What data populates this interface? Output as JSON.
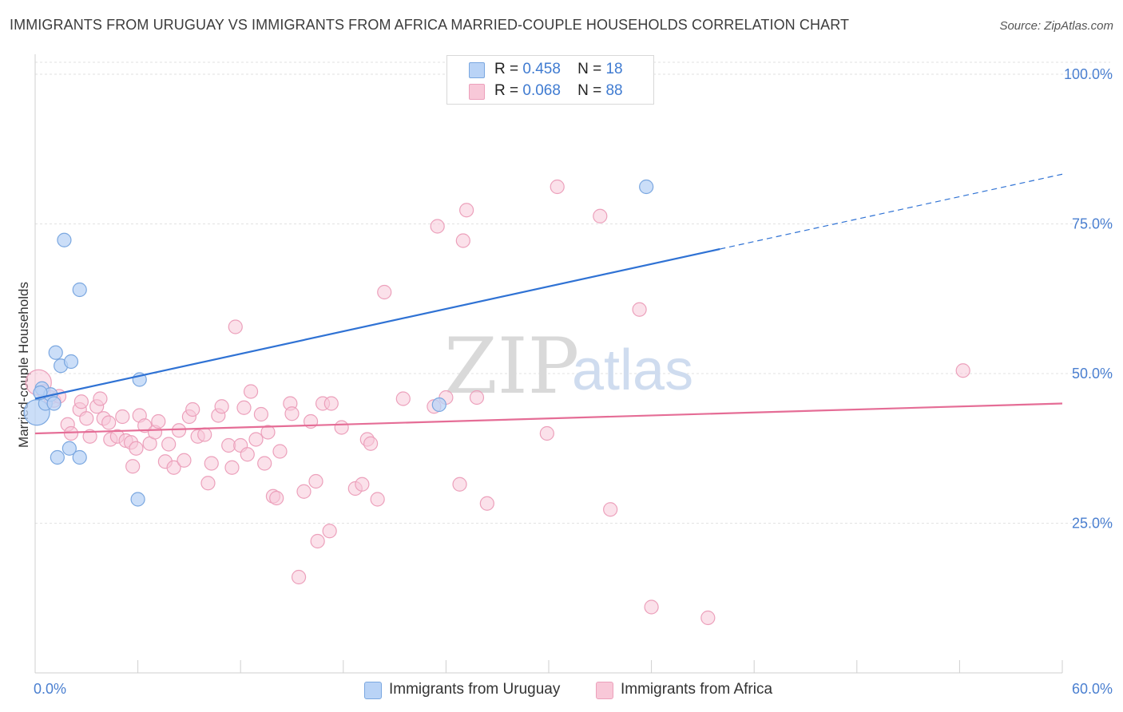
{
  "title": "IMMIGRANTS FROM URUGUAY VS IMMIGRANTS FROM AFRICA MARRIED-COUPLE HOUSEHOLDS CORRELATION CHART",
  "source": "Source: ZipAtlas.com",
  "watermark": {
    "zip": "ZIP",
    "atlas": "atlas"
  },
  "colors": {
    "uruguay_fill": "#b9d3f6",
    "uruguay_stroke": "#7aa7e0",
    "uruguay_line": "#2f72d4",
    "africa_fill": "#f8c8d8",
    "africa_stroke": "#eca0bb",
    "africa_line": "#e56d96",
    "tick_text": "#4a7fd0",
    "grid": "#e2e2e2"
  },
  "stats_legend": [
    {
      "r_label": "R =",
      "r_value": "0.458",
      "n_label": "N =",
      "n_value": "18",
      "series": "uruguay"
    },
    {
      "r_label": "R =",
      "r_value": "0.068",
      "n_label": "N =",
      "n_value": "88",
      "series": "africa"
    }
  ],
  "chart_data": {
    "type": "scatter",
    "title": "IMMIGRANTS FROM URUGUAY VS IMMIGRANTS FROM AFRICA MARRIED-COUPLE HOUSEHOLDS CORRELATION CHART",
    "xlabel": "",
    "ylabel": "Married-couple Households",
    "xlim": [
      0,
      60
    ],
    "ylim": [
      0,
      102
    ],
    "x_tick_labels": [
      {
        "value": 0,
        "label": "0.0%"
      },
      {
        "value": 60,
        "label": "60.0%"
      }
    ],
    "x_minor_ticks": [
      6,
      12,
      18,
      24,
      30,
      36,
      42,
      48,
      54
    ],
    "y_ticks": [
      {
        "value": 25,
        "label": "25.0%"
      },
      {
        "value": 50,
        "label": "50.0%"
      },
      {
        "value": 75,
        "label": "75.0%"
      },
      {
        "value": 100,
        "label": "100.0%"
      }
    ],
    "grid": true,
    "legend_position": "bottom-center",
    "series": [
      {
        "name": "Immigrants from Uruguay",
        "key": "uruguay",
        "R": 0.458,
        "N": 18,
        "points": [
          [
            0.1,
            43.5
          ],
          [
            0.4,
            47.5
          ],
          [
            0.6,
            45.0
          ],
          [
            0.9,
            46.5
          ],
          [
            1.1,
            45.0
          ],
          [
            1.2,
            53.5
          ],
          [
            1.5,
            51.3
          ],
          [
            1.7,
            72.3
          ],
          [
            2.1,
            52.0
          ],
          [
            1.3,
            36.0
          ],
          [
            2.0,
            37.5
          ],
          [
            2.6,
            36.0
          ],
          [
            2.6,
            64.0
          ],
          [
            6.1,
            49.0
          ],
          [
            6.0,
            29.0
          ],
          [
            23.6,
            44.8
          ],
          [
            35.7,
            81.2
          ],
          [
            0.3,
            46.8
          ]
        ],
        "trend": {
          "x0": 0,
          "y0": 45.8,
          "x1": 40,
          "y1": 70.8,
          "dash_to_x": 60,
          "dash_to_y": 83.3
        }
      },
      {
        "name": "Immigrants from Africa",
        "key": "africa",
        "R": 0.068,
        "N": 88,
        "points": [
          [
            0.2,
            48.5
          ],
          [
            0.5,
            47.0
          ],
          [
            0.9,
            46.0
          ],
          [
            1.1,
            45.5
          ],
          [
            1.4,
            46.2
          ],
          [
            1.9,
            41.5
          ],
          [
            2.1,
            40.0
          ],
          [
            2.6,
            44.0
          ],
          [
            2.7,
            45.3
          ],
          [
            3.0,
            42.5
          ],
          [
            3.2,
            39.5
          ],
          [
            3.6,
            44.5
          ],
          [
            3.8,
            45.8
          ],
          [
            4.0,
            42.5
          ],
          [
            4.3,
            41.8
          ],
          [
            4.4,
            39.0
          ],
          [
            4.8,
            39.5
          ],
          [
            5.1,
            42.8
          ],
          [
            5.3,
            38.8
          ],
          [
            5.6,
            38.5
          ],
          [
            5.7,
            34.5
          ],
          [
            5.9,
            37.5
          ],
          [
            6.1,
            43.0
          ],
          [
            6.4,
            41.3
          ],
          [
            6.7,
            38.3
          ],
          [
            7.0,
            40.2
          ],
          [
            7.2,
            42.0
          ],
          [
            7.6,
            35.3
          ],
          [
            7.8,
            38.2
          ],
          [
            8.1,
            34.3
          ],
          [
            8.4,
            40.5
          ],
          [
            8.7,
            35.5
          ],
          [
            9.0,
            42.8
          ],
          [
            9.2,
            44.0
          ],
          [
            9.5,
            39.5
          ],
          [
            9.9,
            39.8
          ],
          [
            10.1,
            31.7
          ],
          [
            10.3,
            35.0
          ],
          [
            10.7,
            43.0
          ],
          [
            10.9,
            44.5
          ],
          [
            11.3,
            38.0
          ],
          [
            11.5,
            34.3
          ],
          [
            11.7,
            57.8
          ],
          [
            12.0,
            38.0
          ],
          [
            12.2,
            44.3
          ],
          [
            12.4,
            36.5
          ],
          [
            12.6,
            47.0
          ],
          [
            12.9,
            39.0
          ],
          [
            13.2,
            43.2
          ],
          [
            13.4,
            35.0
          ],
          [
            13.6,
            40.2
          ],
          [
            13.9,
            29.5
          ],
          [
            14.1,
            29.2
          ],
          [
            14.3,
            37.0
          ],
          [
            14.9,
            45.0
          ],
          [
            15.0,
            43.3
          ],
          [
            15.4,
            16.0
          ],
          [
            15.7,
            30.3
          ],
          [
            16.1,
            42.0
          ],
          [
            16.4,
            32.0
          ],
          [
            16.5,
            22.0
          ],
          [
            16.8,
            45.0
          ],
          [
            17.2,
            23.7
          ],
          [
            17.3,
            45.0
          ],
          [
            17.9,
            41.0
          ],
          [
            18.7,
            30.8
          ],
          [
            19.1,
            31.5
          ],
          [
            19.4,
            39.0
          ],
          [
            19.6,
            38.3
          ],
          [
            20.0,
            29.0
          ],
          [
            20.4,
            63.6
          ],
          [
            21.5,
            45.8
          ],
          [
            23.3,
            44.5
          ],
          [
            23.5,
            74.6
          ],
          [
            24.0,
            46.0
          ],
          [
            24.8,
            31.5
          ],
          [
            25.0,
            72.2
          ],
          [
            25.2,
            77.3
          ],
          [
            25.8,
            46.0
          ],
          [
            26.4,
            28.3
          ],
          [
            29.9,
            40.0
          ],
          [
            30.5,
            81.2
          ],
          [
            33.0,
            76.3
          ],
          [
            33.6,
            27.3
          ],
          [
            35.3,
            60.7
          ],
          [
            36.0,
            11.0
          ],
          [
            39.3,
            9.2
          ],
          [
            54.2,
            50.5
          ]
        ],
        "trend": {
          "x0": 0,
          "y0": 40.0,
          "x1": 60,
          "y1": 45.0
        }
      }
    ]
  }
}
